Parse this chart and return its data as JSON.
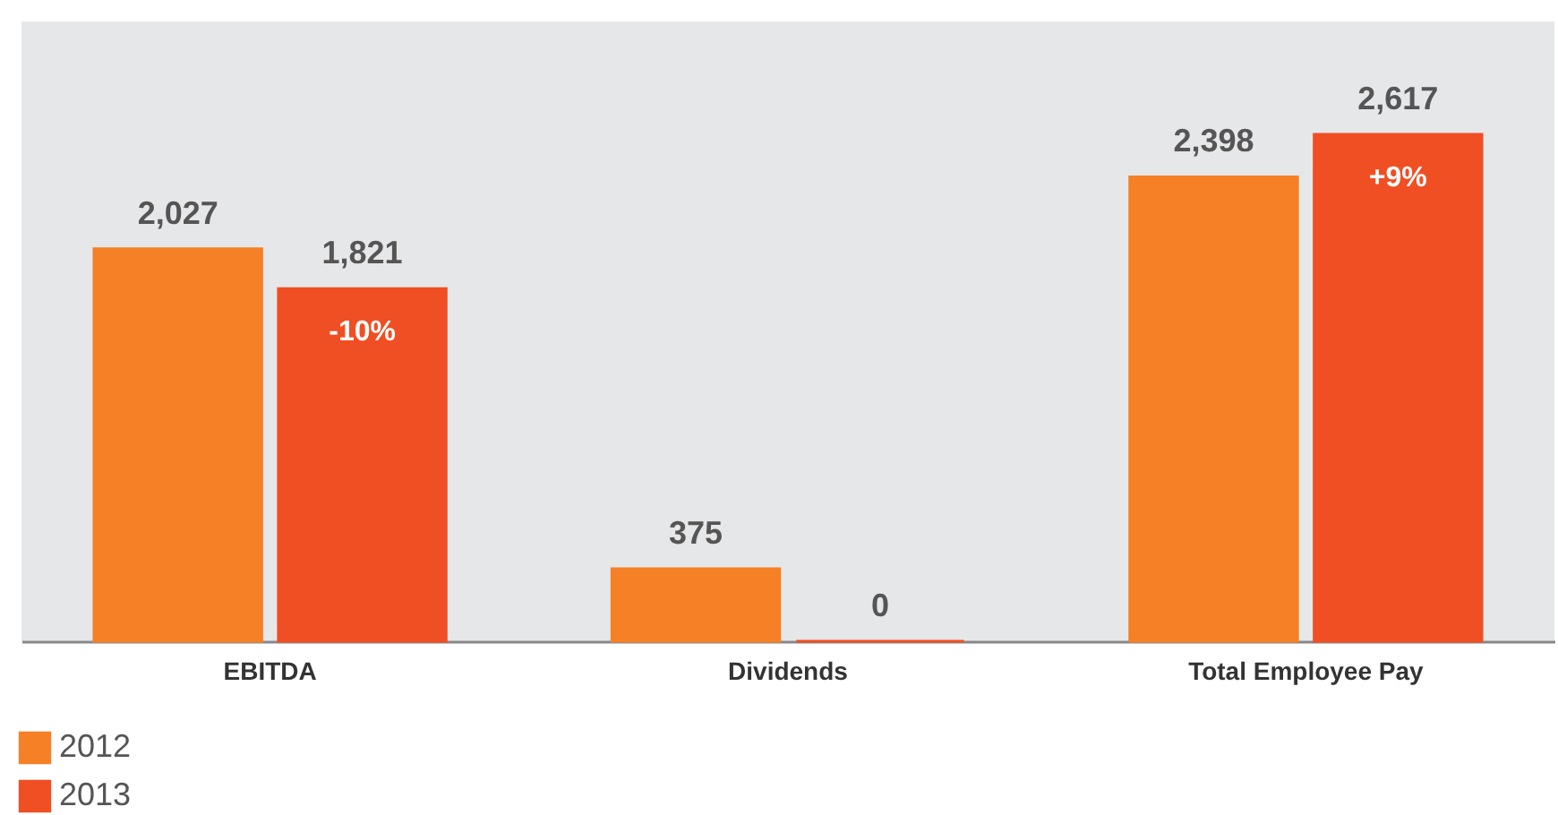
{
  "chart_data": {
    "type": "bar",
    "categories": [
      "EBITDA",
      "Dividends",
      "Total Employee Pay"
    ],
    "series": [
      {
        "name": "2012",
        "color": "#f58025",
        "values": [
          2027,
          375,
          2398
        ],
        "value_labels": [
          "2,027",
          "375",
          "2,398"
        ]
      },
      {
        "name": "2013",
        "color": "#f04e23",
        "values": [
          1821,
          0,
          2617
        ],
        "value_labels": [
          "1,821",
          "0",
          "2,617"
        ]
      }
    ],
    "ylim": [
      0,
      3200
    ],
    "legend": "bottom left",
    "grid": false,
    "annotations": [
      {
        "text": "-10%",
        "x": "EBITDA",
        "y": 1821
      },
      {
        "text": "+9%",
        "x": "Total Employee Pay",
        "y": 2617
      }
    ]
  }
}
